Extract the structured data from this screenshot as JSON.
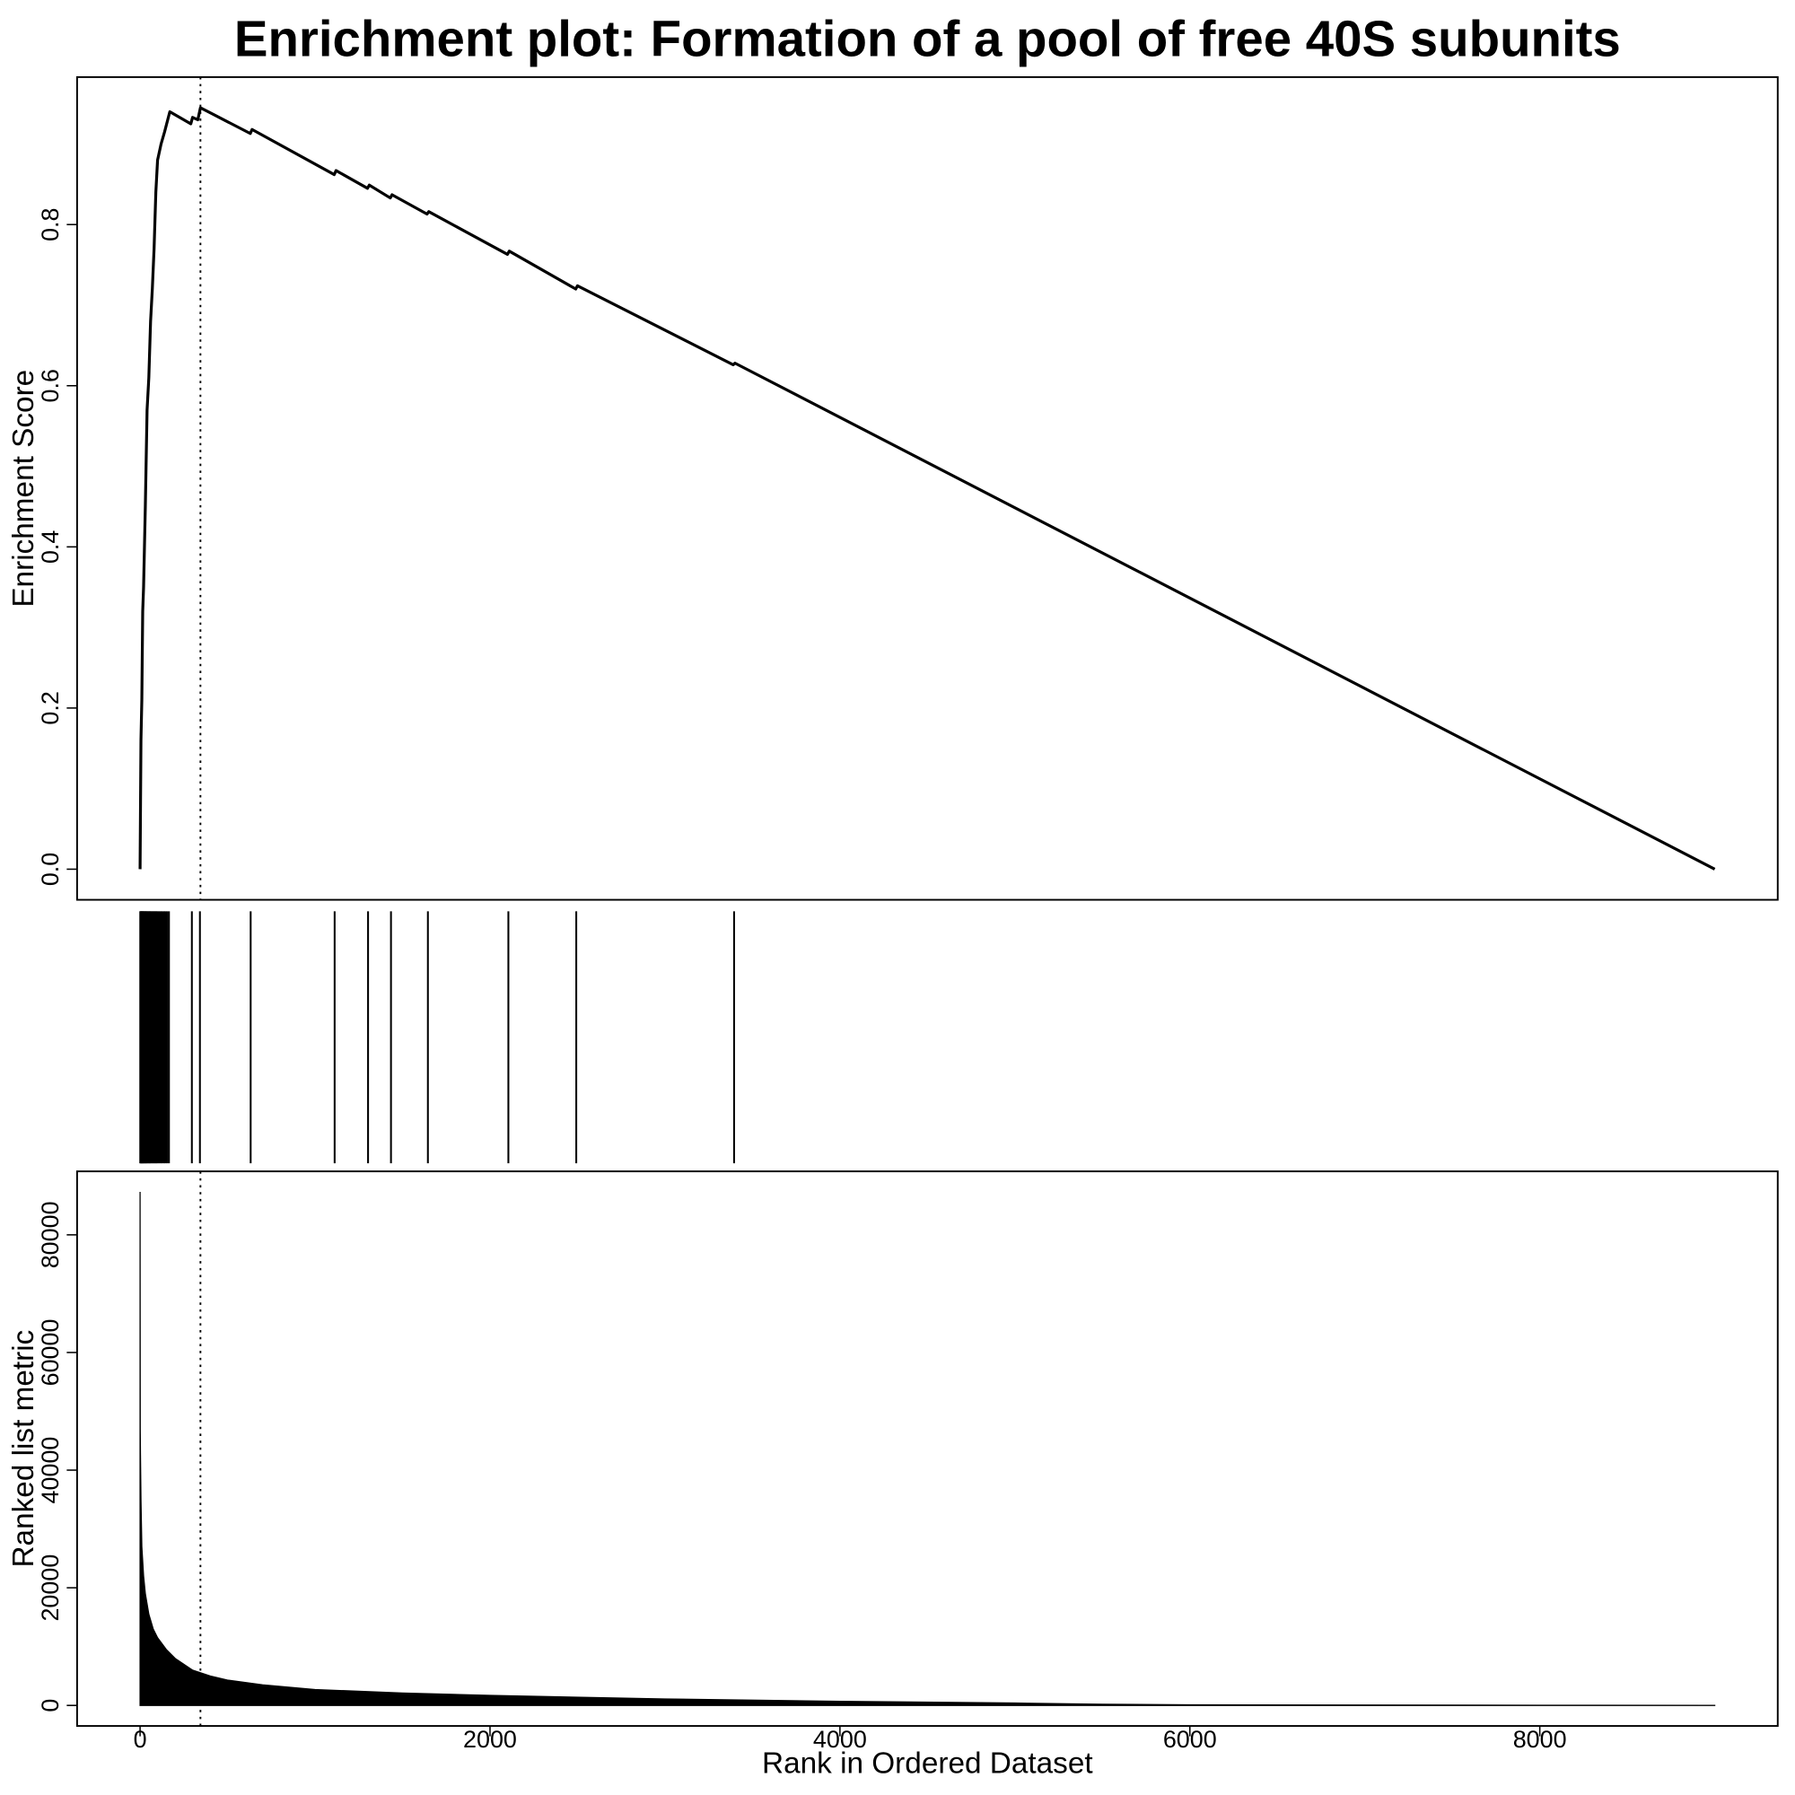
{
  "chart_data": [
    {
      "type": "line",
      "title": "Enrichment plot: Formation of a pool of free 40S subunits",
      "y_label": "Enrichment Score",
      "x": [
        0,
        5,
        10,
        15,
        20,
        30,
        40,
        50,
        60,
        70,
        80,
        90,
        100,
        120,
        140,
        170,
        290,
        300,
        330,
        345,
        630,
        640,
        1110,
        1120,
        1300,
        1310,
        1430,
        1440,
        1640,
        1650,
        2100,
        2110,
        2490,
        2500,
        3390,
        3400,
        9000
      ],
      "values": [
        0,
        0.16,
        0.21,
        0.32,
        0.35,
        0.45,
        0.57,
        0.61,
        0.68,
        0.72,
        0.77,
        0.84,
        0.88,
        0.9,
        0.915,
        0.94,
        0.925,
        0.933,
        0.93,
        0.945,
        0.913,
        0.918,
        0.862,
        0.867,
        0.845,
        0.849,
        0.833,
        0.837,
        0.813,
        0.816,
        0.763,
        0.767,
        0.72,
        0.724,
        0.626,
        0.628,
        0
      ],
      "color": "#000000",
      "xlim": [
        -360,
        9360
      ],
      "ylim": [
        -0.038,
        0.983
      ],
      "yticks": [
        {
          "value": 0,
          "label": "0.0"
        },
        0.2,
        0.4,
        0.6,
        0.8
      ],
      "vline": 345
    },
    {
      "type": "hits",
      "x": [
        1,
        3,
        5,
        8,
        10,
        13,
        15,
        18,
        20,
        24,
        27,
        30,
        33,
        36,
        40,
        44,
        48,
        52,
        56,
        60,
        65,
        70,
        75,
        80,
        85,
        90,
        95,
        100,
        108,
        115,
        122,
        130,
        138,
        146,
        155,
        165,
        296,
        342,
        632,
        1112,
        1303,
        1434,
        1645,
        2105,
        2493,
        3395
      ],
      "color": "#000000",
      "xlim": [
        -360,
        9360
      ]
    },
    {
      "type": "area",
      "x_label": "Rank in Ordered Dataset",
      "y_label": "Ranked list metric",
      "x": [
        0,
        1,
        2,
        5,
        10,
        20,
        30,
        50,
        75,
        100,
        150,
        200,
        300,
        400,
        500,
        700,
        1000,
        1500,
        2000,
        3000,
        4000,
        5000,
        5500,
        6000,
        7000,
        8000,
        9000
      ],
      "values": [
        87300,
        47000,
        43000,
        35000,
        27000,
        22000,
        19000,
        15500,
        13000,
        11500,
        9500,
        8000,
        6000,
        5000,
        4300,
        3500,
        2700,
        2100,
        1700,
        1100,
        700,
        400,
        200,
        100,
        60,
        30,
        10
      ],
      "color": "#000000",
      "xlim": [
        -360,
        9360
      ],
      "ylim": [
        -3492,
        90792
      ],
      "xticks": [
        0,
        2000,
        4000,
        6000,
        8000
      ],
      "yticks": [
        0,
        20000,
        40000,
        60000,
        80000
      ],
      "vline": 345
    }
  ]
}
